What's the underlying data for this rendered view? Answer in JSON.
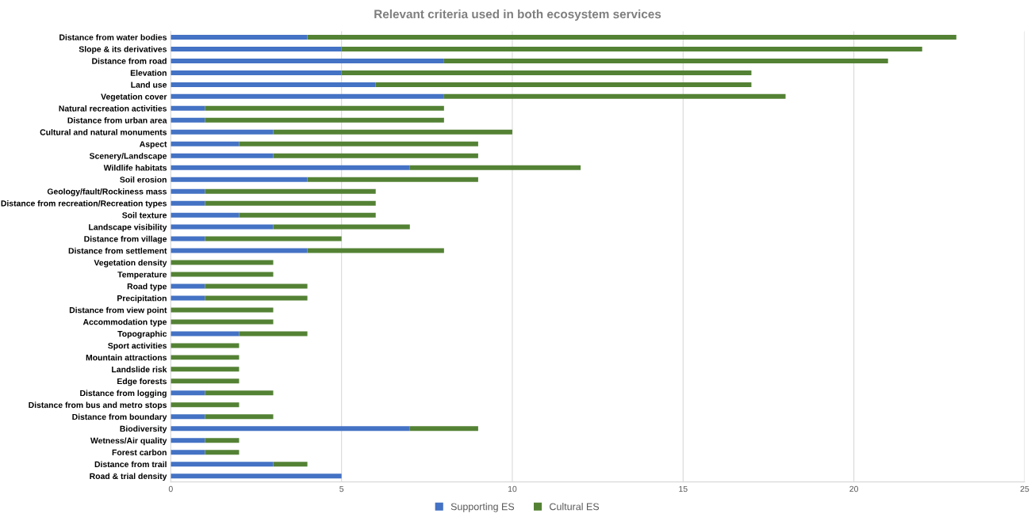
{
  "chart_data": {
    "type": "bar",
    "orientation": "horizontal",
    "stacked": true,
    "title": "Relevant criteria used in both ecosystem services",
    "categories": [
      "Distance from water bodies",
      "Slope & its derivatives",
      "Distance from road",
      "Elevation",
      "Land use",
      "Vegetation cover",
      "Natural recreation activities",
      "Distance from urban area",
      "Cultural and natural monuments",
      "Aspect",
      "Scenery/Landscape",
      "Wildlife habitats",
      "Soil erosion",
      "Geology/fault/Rockiness mass",
      "Distance from recreation/Recreation types",
      "Soil texture",
      "Landscape visibility",
      "Distance from village",
      "Distance from settlement",
      "Vegetation density",
      "Temperature",
      "Road type",
      "Precipitation",
      "Distance from view point",
      "Accommodation type",
      "Topographic",
      "Sport activities",
      "Mountain attractions",
      "Landslide risk",
      "Edge forests",
      "Distance from logging",
      "Distance from bus and metro stops",
      "Distance from boundary",
      "Biodiversity",
      "Wetness/Air quality",
      "Forest carbon",
      "Distance from trail",
      "Road & trial density"
    ],
    "series": [
      {
        "name": "Supporting ES",
        "color": "#4472c4",
        "values": [
          4,
          5,
          8,
          5,
          6,
          8,
          1,
          1,
          3,
          2,
          3,
          7,
          4,
          1,
          1,
          2,
          3,
          1,
          4,
          0,
          0,
          1,
          1,
          0,
          0,
          2,
          0,
          0,
          0,
          0,
          1,
          0,
          1,
          7,
          1,
          1,
          3,
          5
        ]
      },
      {
        "name": "Cultural ES",
        "color": "#548235",
        "values": [
          19,
          17,
          13,
          12,
          11,
          10,
          7,
          7,
          7,
          7,
          6,
          5,
          5,
          5,
          5,
          4,
          4,
          4,
          4,
          3,
          3,
          3,
          3,
          3,
          3,
          2,
          2,
          2,
          2,
          2,
          2,
          2,
          2,
          2,
          1,
          1,
          1,
          0
        ]
      }
    ],
    "xlim": [
      0,
      25
    ],
    "xticks": [
      0,
      5,
      10,
      15,
      20,
      25
    ],
    "grid": "x",
    "legend": "bottom"
  }
}
